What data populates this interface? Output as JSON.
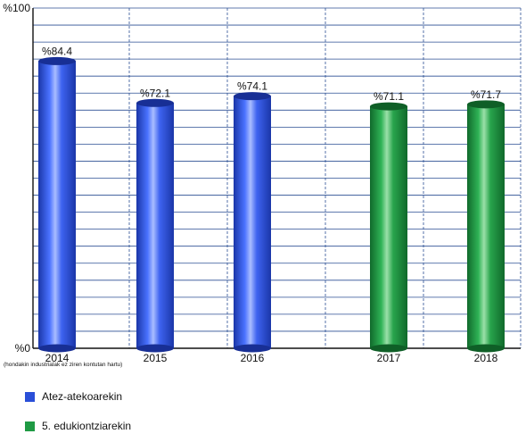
{
  "chart_data": {
    "type": "bar",
    "categories": [
      "2014",
      "2015",
      "2016",
      "2017",
      "2018"
    ],
    "values": [
      84.4,
      72.1,
      74.1,
      71.1,
      71.7
    ],
    "data_labels": [
      "%84.4",
      "%72.1",
      "%74.1",
      "%71.1",
      "%71.7"
    ],
    "bar_series": [
      "Atez-atekoarekin",
      "Atez-atekoarekin",
      "Atez-atekoarekin",
      "5. edukiontziarekin",
      "5. edukiontziarekin"
    ],
    "y_tick_labels": [
      "%0",
      "%100"
    ],
    "ylim": [
      0,
      100
    ],
    "footnote": "(hondakin industrialak ez ziren kontutan hartu)",
    "grid": true,
    "legend_position": "bottom-left",
    "series": [
      {
        "name": "Atez-atekoarekin",
        "color": "#2a4fd8"
      },
      {
        "name": "5. edukiontziarekin",
        "color": "#1f9a44"
      }
    ]
  }
}
